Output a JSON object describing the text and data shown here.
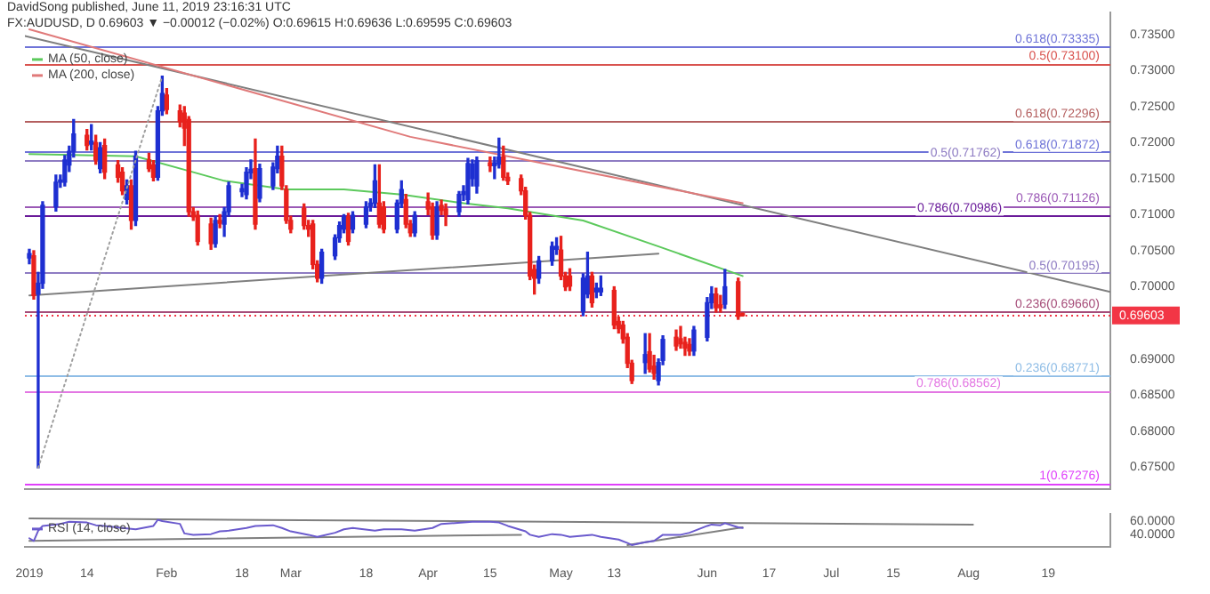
{
  "chart_data": [
    {
      "type": "candlestick",
      "annotations": [
        "DavidSong published, June 11, 2019 23:16:31 UTC",
        "FX:AUDUSD, D 0.69603 ▼ −0.00012 (−0.02%) O:0.69615 H:0.69636 L:0.69595 C:0.69603"
      ],
      "xlim": [
        "2018-12-31",
        "2019-09-02"
      ],
      "ylim": [
        0.672,
        0.738
      ],
      "yticks": [
        {
          "value": 0.675,
          "label": "0.67500"
        },
        {
          "value": 0.68,
          "label": "0.68000"
        },
        {
          "value": 0.685,
          "label": "0.68500"
        },
        {
          "value": 0.69,
          "label": "0.69000"
        },
        {
          "value": 0.7,
          "label": "0.70000"
        },
        {
          "value": 0.705,
          "label": "0.70500"
        },
        {
          "value": 0.71,
          "label": "0.71000"
        },
        {
          "value": 0.715,
          "label": "0.71500"
        },
        {
          "value": 0.72,
          "label": "0.72000"
        },
        {
          "value": 0.725,
          "label": "0.72500"
        },
        {
          "value": 0.73,
          "label": "0.73000"
        },
        {
          "value": 0.735,
          "label": "0.73500"
        }
      ],
      "tick_labels": "y",
      "legend": "top left",
      "x": [
        "2019-01-01",
        "2019-01-02",
        "2019-01-03",
        "2019-01-04",
        "2019-01-07",
        "2019-01-08",
        "2019-01-09",
        "2019-01-10",
        "2019-01-11",
        "2019-01-14",
        "2019-01-15",
        "2019-01-16",
        "2019-01-17",
        "2019-01-18",
        "2019-01-21",
        "2019-01-22",
        "2019-01-23",
        "2019-01-24",
        "2019-01-25",
        "2019-01-28",
        "2019-01-29",
        "2019-01-30",
        "2019-01-31",
        "2019-02-01",
        "2019-02-04",
        "2019-02-05",
        "2019-02-06",
        "2019-02-07",
        "2019-02-08",
        "2019-02-11",
        "2019-02-12",
        "2019-02-13",
        "2019-02-14",
        "2019-02-15",
        "2019-02-18",
        "2019-02-19",
        "2019-02-20",
        "2019-02-21",
        "2019-02-22",
        "2019-02-25",
        "2019-02-26",
        "2019-02-27",
        "2019-02-28",
        "2019-03-01",
        "2019-03-04",
        "2019-03-05",
        "2019-03-06",
        "2019-03-07",
        "2019-03-08",
        "2019-03-11",
        "2019-03-12",
        "2019-03-13",
        "2019-03-14",
        "2019-03-15",
        "2019-03-18",
        "2019-03-19",
        "2019-03-20",
        "2019-03-21",
        "2019-03-22",
        "2019-03-25",
        "2019-03-26",
        "2019-03-27",
        "2019-03-28",
        "2019-03-29",
        "2019-04-01",
        "2019-04-02",
        "2019-04-03",
        "2019-04-04",
        "2019-04-05",
        "2019-04-08",
        "2019-04-09",
        "2019-04-10",
        "2019-04-11",
        "2019-04-12",
        "2019-04-15",
        "2019-04-16",
        "2019-04-17",
        "2019-04-18",
        "2019-04-19",
        "2019-04-22",
        "2019-04-23",
        "2019-04-24",
        "2019-04-25",
        "2019-04-26",
        "2019-04-29",
        "2019-04-30",
        "2019-05-01",
        "2019-05-02",
        "2019-05-03",
        "2019-05-06",
        "2019-05-07",
        "2019-05-08",
        "2019-05-09",
        "2019-05-10",
        "2019-05-13",
        "2019-05-14",
        "2019-05-15",
        "2019-05-16",
        "2019-05-17",
        "2019-05-20",
        "2019-05-21",
        "2019-05-22",
        "2019-05-23",
        "2019-05-24",
        "2019-05-27",
        "2019-05-28",
        "2019-05-29",
        "2019-05-30",
        "2019-05-31",
        "2019-06-03",
        "2019-06-04",
        "2019-06-05",
        "2019-06-06",
        "2019-06-07",
        "2019-06-10",
        "2019-06-11"
      ],
      "ohlc": [
        [
          0.704,
          0.7052,
          0.7032,
          0.7046
        ],
        [
          0.7043,
          0.705,
          0.6983,
          0.6988
        ],
        [
          0.699,
          0.702,
          0.6749,
          0.7005
        ],
        [
          0.7005,
          0.7118,
          0.6998,
          0.7113
        ],
        [
          0.7111,
          0.7155,
          0.7105,
          0.7145
        ],
        [
          0.7145,
          0.7155,
          0.7138,
          0.7148
        ],
        [
          0.7145,
          0.7182,
          0.714,
          0.7176
        ],
        [
          0.7169,
          0.7195,
          0.716,
          0.7188
        ],
        [
          0.7188,
          0.7232,
          0.718,
          0.7212
        ],
        [
          0.721,
          0.7218,
          0.719,
          0.7196
        ],
        [
          0.7198,
          0.7225,
          0.719,
          0.7202
        ],
        [
          0.72,
          0.721,
          0.717,
          0.7176
        ],
        [
          0.7164,
          0.72,
          0.7158,
          0.7193
        ],
        [
          0.7196,
          0.7205,
          0.715,
          0.7159
        ],
        [
          0.7169,
          0.7175,
          0.7145,
          0.7152
        ],
        [
          0.7159,
          0.7165,
          0.7128,
          0.7133
        ],
        [
          0.7121,
          0.7148,
          0.7115,
          0.714
        ],
        [
          0.714,
          0.7148,
          0.708,
          0.7092
        ],
        [
          0.7092,
          0.7188,
          0.7085,
          0.7181
        ],
        [
          0.7176,
          0.7185,
          0.716,
          0.7164
        ],
        [
          0.7169,
          0.7175,
          0.7147,
          0.7152
        ],
        [
          0.7152,
          0.725,
          0.7148,
          0.7244
        ],
        [
          0.7244,
          0.7292,
          0.7238,
          0.7268
        ],
        [
          0.7266,
          0.7275,
          0.724,
          0.7246
        ],
        [
          0.7244,
          0.7252,
          0.7222,
          0.7229
        ],
        [
          0.7241,
          0.725,
          0.7196,
          0.722
        ],
        [
          0.7232,
          0.7236,
          0.7098,
          0.7104
        ],
        [
          0.7104,
          0.711,
          0.7092,
          0.7097
        ],
        [
          0.7099,
          0.7105,
          0.7058,
          0.7063
        ],
        [
          0.7087,
          0.7095,
          0.7052,
          0.706
        ],
        [
          0.706,
          0.7098,
          0.7055,
          0.7092
        ],
        [
          0.7092,
          0.71,
          0.7082,
          0.7088
        ],
        [
          0.7087,
          0.711,
          0.707,
          0.7104
        ],
        [
          0.7104,
          0.7145,
          0.7098,
          0.714
        ],
        [
          0.7132,
          0.7142,
          0.7125,
          0.7136
        ],
        [
          0.7128,
          0.7165,
          0.7122,
          0.7159
        ],
        [
          0.7158,
          0.7176,
          0.715,
          0.7163
        ],
        [
          0.7164,
          0.7205,
          0.708,
          0.7087
        ],
        [
          0.7123,
          0.717,
          0.7118,
          0.7164
        ],
        [
          0.714,
          0.7172,
          0.7135,
          0.7166
        ],
        [
          0.7164,
          0.7195,
          0.7158,
          0.7181
        ],
        [
          0.7181,
          0.7195,
          0.7135,
          0.714
        ],
        [
          0.7135,
          0.714,
          0.7088,
          0.7092
        ],
        [
          0.7092,
          0.7098,
          0.7075,
          0.708
        ],
        [
          0.7109,
          0.7115,
          0.708,
          0.7085
        ],
        [
          0.7085,
          0.7092,
          0.707,
          0.708
        ],
        [
          0.7087,
          0.7092,
          0.7025,
          0.7031
        ],
        [
          0.7031,
          0.7036,
          0.7007,
          0.7012
        ],
        [
          0.7012,
          0.7052,
          0.7005,
          0.7048
        ],
        [
          0.7043,
          0.7072,
          0.7038,
          0.7068
        ],
        [
          0.7068,
          0.709,
          0.7062,
          0.7085
        ],
        [
          0.708,
          0.71,
          0.7075,
          0.7097
        ],
        [
          0.7097,
          0.7102,
          0.7058,
          0.7063
        ],
        [
          0.708,
          0.7104,
          0.7075,
          0.7099
        ],
        [
          0.7087,
          0.7118,
          0.7082,
          0.7111
        ],
        [
          0.7112,
          0.7122,
          0.7105,
          0.7116
        ],
        [
          0.7116,
          0.7169,
          0.711,
          0.7147
        ],
        [
          0.7116,
          0.7169,
          0.7082,
          0.7087
        ],
        [
          0.7111,
          0.7118,
          0.7075,
          0.708
        ],
        [
          0.708,
          0.712,
          0.7075,
          0.7116
        ],
        [
          0.7116,
          0.7147,
          0.711,
          0.7135
        ],
        [
          0.7121,
          0.7128,
          0.7082,
          0.7087
        ],
        [
          0.7087,
          0.7092,
          0.707,
          0.7075
        ],
        [
          0.7075,
          0.7104,
          0.707,
          0.7099
        ],
        [
          0.7118,
          0.713,
          0.71,
          0.7108
        ],
        [
          0.7111,
          0.7116,
          0.7066,
          0.7072
        ],
        [
          0.7072,
          0.7118,
          0.7066,
          0.7111
        ],
        [
          0.7113,
          0.712,
          0.71,
          0.7106
        ],
        [
          0.7108,
          0.7115,
          0.7085,
          0.71
        ],
        [
          0.7104,
          0.7132,
          0.7098,
          0.7128
        ],
        [
          0.7128,
          0.714,
          0.712,
          0.7132
        ],
        [
          0.7121,
          0.7178,
          0.7115,
          0.7171
        ],
        [
          0.715,
          0.7176,
          0.714,
          0.717
        ],
        [
          0.714,
          0.718,
          0.713,
          0.7175
        ],
        [
          0.7172,
          0.718,
          0.716,
          0.7168
        ],
        [
          0.7168,
          0.718,
          0.715,
          0.7172
        ],
        [
          0.717,
          0.7206,
          0.7165,
          0.718
        ],
        [
          0.718,
          0.7195,
          0.7148,
          0.7152
        ],
        [
          0.7152,
          0.7158,
          0.7142,
          0.7147
        ],
        [
          0.715,
          0.7155,
          0.7128,
          0.7133
        ],
        [
          0.7133,
          0.7138,
          0.7094,
          0.7099
        ],
        [
          0.7099,
          0.7103,
          0.701,
          0.7015
        ],
        [
          0.7024,
          0.703,
          0.699,
          0.7012
        ],
        [
          0.7012,
          0.7042,
          0.7005,
          0.7036
        ],
        [
          0.7036,
          0.7062,
          0.703,
          0.7056
        ],
        [
          0.7052,
          0.7068,
          0.7045,
          0.7056
        ],
        [
          0.7051,
          0.707,
          0.701,
          0.7015
        ],
        [
          0.7015,
          0.702,
          0.6995,
          0.7
        ],
        [
          0.7015,
          0.7025,
          0.6995,
          0.7001
        ],
        [
          0.6966,
          0.7018,
          0.696,
          0.7012
        ],
        [
          0.699,
          0.7048,
          0.6985,
          0.7015
        ],
        [
          0.7015,
          0.702,
          0.6972,
          0.6978
        ],
        [
          0.6993,
          0.7005,
          0.6985,
          0.6998
        ],
        [
          0.6993,
          0.7015,
          0.6988,
          0.6998
        ],
        [
          0.6995,
          0.7,
          0.6942,
          0.6947
        ],
        [
          0.6952,
          0.6958,
          0.6936,
          0.6942
        ],
        [
          0.6947,
          0.6952,
          0.6922,
          0.6928
        ],
        [
          0.693,
          0.6935,
          0.6888,
          0.6894
        ],
        [
          0.6894,
          0.6898,
          0.6866,
          0.687
        ],
        [
          0.6895,
          0.6935,
          0.688,
          0.6906
        ],
        [
          0.691,
          0.6935,
          0.6882,
          0.6886
        ],
        [
          0.689,
          0.6905,
          0.6872,
          0.688
        ],
        [
          0.687,
          0.69,
          0.6864,
          0.6895
        ],
        [
          0.6898,
          0.6932,
          0.6892,
          0.6927
        ],
        [
          0.693,
          0.694,
          0.6912,
          0.6918
        ],
        [
          0.6928,
          0.6945,
          0.6915,
          0.6921
        ],
        [
          0.6923,
          0.693,
          0.6905,
          0.6915
        ],
        [
          0.692,
          0.6928,
          0.6905,
          0.6911
        ],
        [
          0.6911,
          0.6945,
          0.6905,
          0.694
        ],
        [
          0.693,
          0.6985,
          0.6925,
          0.6978
        ],
        [
          0.6978,
          0.7,
          0.697,
          0.699
        ],
        [
          0.699,
          0.6998,
          0.6965,
          0.6971
        ],
        [
          0.6975,
          0.6988,
          0.6965,
          0.6971
        ],
        [
          0.6976,
          0.7024,
          0.697,
          0.7
        ],
        [
          0.7007,
          0.7012,
          0.6955,
          0.6959
        ],
        [
          0.69615,
          0.69636,
          0.69595,
          0.69603
        ]
      ],
      "colors": [
        "#1e2fd1",
        "#e8211c",
        "#1e2fd1",
        "#1e2fd1",
        "#1e2fd1",
        "#1e2fd1",
        "#1e2fd1",
        "#1e2fd1",
        "#1e2fd1",
        "#e8211c",
        "#1e2fd1",
        "#e8211c",
        "#1e2fd1",
        "#e8211c",
        "#e8211c",
        "#e8211c",
        "#1e2fd1",
        "#e8211c",
        "#1e2fd1",
        "#e8211c",
        "#e8211c",
        "#1e2fd1",
        "#1e2fd1",
        "#e8211c",
        "#e8211c",
        "#e8211c",
        "#e8211c",
        "#e8211c",
        "#e8211c",
        "#e8211c",
        "#1e2fd1",
        "#e8211c",
        "#1e2fd1",
        "#1e2fd1",
        "#1e2fd1",
        "#1e2fd1",
        "#1e2fd1",
        "#e8211c",
        "#1e2fd1",
        "#1e2fd1",
        "#1e2fd1",
        "#e8211c",
        "#e8211c",
        "#e8211c",
        "#e8211c",
        "#e8211c",
        "#e8211c",
        "#e8211c",
        "#1e2fd1",
        "#1e2fd1",
        "#1e2fd1",
        "#1e2fd1",
        "#e8211c",
        "#1e2fd1",
        "#1e2fd1",
        "#1e2fd1",
        "#1e2fd1",
        "#e8211c",
        "#e8211c",
        "#1e2fd1",
        "#1e2fd1",
        "#e8211c",
        "#e8211c",
        "#1e2fd1",
        "#e8211c",
        "#e8211c",
        "#1e2fd1",
        "#e8211c",
        "#e8211c",
        "#1e2fd1",
        "#1e2fd1",
        "#1e2fd1",
        "#1e2fd1",
        "#1e2fd1",
        "#e8211c",
        "#1e2fd1",
        "#1e2fd1",
        "#e8211c",
        "#e8211c",
        "#e8211c",
        "#e8211c",
        "#e8211c",
        "#e8211c",
        "#1e2fd1",
        "#1e2fd1",
        "#1e2fd1",
        "#e8211c",
        "#e8211c",
        "#e8211c",
        "#1e2fd1",
        "#1e2fd1",
        "#e8211c",
        "#1e2fd1",
        "#1e2fd1",
        "#e8211c",
        "#e8211c",
        "#e8211c",
        "#e8211c",
        "#e8211c",
        "#1e2fd1",
        "#e8211c",
        "#e8211c",
        "#1e2fd1",
        "#1e2fd1",
        "#e8211c",
        "#e8211c",
        "#e8211c",
        "#e8211c",
        "#1e2fd1",
        "#1e2fd1",
        "#1e2fd1",
        "#e8211c",
        "#e8211c",
        "#1e2fd1",
        "#e8211c",
        "#e8211c"
      ],
      "series": [
        {
          "type": "line",
          "name": "MA (50, close)",
          "color": "#5cc95c",
          "x": [
            "2019-01-01",
            "2019-01-25",
            "2019-02-07",
            "2019-02-14",
            "2019-02-28",
            "2019-03-13",
            "2019-03-26",
            "2019-04-09",
            "2019-04-19",
            "2019-05-06",
            "2019-05-23",
            "2019-06-11"
          ],
          "values": [
            0.7184,
            0.7181,
            0.7159,
            0.7147,
            0.7135,
            0.7135,
            0.7128,
            0.7116,
            0.7109,
            0.7092,
            0.7056,
            0.7015
          ]
        },
        {
          "type": "line",
          "name": "MA (200, close)",
          "color": "#e07a7a",
          "x": [
            "2019-01-01",
            "2019-03-28",
            "2019-06-11"
          ],
          "values": [
            0.7357,
            0.7208,
            0.7116
          ]
        },
        {
          "type": "line",
          "color": "#7f7f7f",
          "x": [
            "2018-12-31",
            "2019-09-02"
          ],
          "values": [
            0.7348,
            0.6993
          ]
        },
        {
          "type": "line",
          "color": "#7f7f7f",
          "x": [
            "2019-01-01",
            "2019-05-23"
          ],
          "values": [
            0.6988,
            0.7046
          ]
        },
        {
          "type": "line",
          "color": "#9e9e9e",
          "line_style": "dotted",
          "x": [
            "2019-01-03",
            "2019-01-31"
          ],
          "values": [
            0.6749,
            0.7292
          ]
        }
      ],
      "ref_lines": [
        {
          "axis": "y",
          "value": 0.73335,
          "label": "0.618(0.73335)",
          "color": "#6f74d8"
        },
        {
          "axis": "y",
          "value": 0.731,
          "label": "0.5(0.73100)",
          "color": "#d9534f"
        },
        {
          "axis": "y",
          "value": 0.72296,
          "label": "0.618(0.72296)",
          "color": "#b45f5f"
        },
        {
          "axis": "y",
          "value": 0.71872,
          "label": "0.618(0.71872)",
          "color": "#6f74d8"
        },
        {
          "axis": "y",
          "value": 0.71762,
          "label": "0.5(0.71762)",
          "color": "#8e7cc3"
        },
        {
          "axis": "y",
          "value": 0.71126,
          "label": "0.786(0.71126)",
          "color": "#9b59b6"
        },
        {
          "axis": "y",
          "value": 0.70986,
          "label": "0.786(0.70986)",
          "color": "#6a1b9a"
        },
        {
          "axis": "y",
          "value": 0.70195,
          "label": "0.5(0.70195)",
          "color": "#8e7cc3"
        },
        {
          "axis": "y",
          "value": 0.6966,
          "label": "0.236(0.69660)",
          "color": "#a64d79"
        },
        {
          "axis": "y",
          "value": 0.68771,
          "label": "0.236(0.68771)",
          "color": "#8fbde6"
        },
        {
          "axis": "y",
          "value": 0.68562,
          "label": "0.786(0.68562)",
          "color": "#e377e3"
        },
        {
          "axis": "y",
          "value": 0.67276,
          "label": "1(0.67276)",
          "color": "#e040fb"
        },
        {
          "axis": "y",
          "value": 0.69603,
          "label": "0.69603",
          "color": "#f23645",
          "line_style": "dotted"
        }
      ]
    },
    {
      "type": "line",
      "xlim": [
        "2018-12-31",
        "2019-09-02"
      ],
      "ylim": [
        22,
        70
      ],
      "legend": "top left",
      "yticks": [
        {
          "value": 40,
          "label": "40.0000"
        },
        {
          "value": 60,
          "label": "60.0000"
        }
      ],
      "xticks": [
        {
          "value": "2019-01-01",
          "label": "2019"
        },
        {
          "value": "2019-01-14",
          "label": "14"
        },
        {
          "value": "2019-02-01",
          "label": "Feb"
        },
        {
          "value": "2019-02-18",
          "label": "18"
        },
        {
          "value": "2019-03-01",
          "label": "Mar"
        },
        {
          "value": "2019-03-18",
          "label": "18"
        },
        {
          "value": "2019-04-01",
          "label": "Apr"
        },
        {
          "value": "2019-04-15",
          "label": "15"
        },
        {
          "value": "2019-05-01",
          "label": "May"
        },
        {
          "value": "2019-05-13",
          "label": "13"
        },
        {
          "value": "2019-06-03",
          "label": "Jun"
        },
        {
          "value": "2019-06-17",
          "label": "17"
        },
        {
          "value": "2019-07-01",
          "label": "Jul"
        },
        {
          "value": "2019-07-15",
          "label": "15"
        },
        {
          "value": "2019-08-01",
          "label": "Aug"
        },
        {
          "value": "2019-08-19",
          "label": "19"
        }
      ],
      "series": [
        {
          "name": "RSI (14, close)",
          "color": "#6a5acd",
          "x": [
            "2019-01-01",
            "2019-01-02",
            "2019-01-03",
            "2019-01-04",
            "2019-01-08",
            "2019-01-10",
            "2019-01-14",
            "2019-01-16",
            "2019-01-18",
            "2019-01-22",
            "2019-01-25",
            "2019-01-29",
            "2019-01-30",
            "2019-01-31",
            "2019-02-04",
            "2019-02-05",
            "2019-02-07",
            "2019-02-11",
            "2019-02-13",
            "2019-02-15",
            "2019-02-19",
            "2019-02-21",
            "2019-02-25",
            "2019-02-27",
            "2019-03-01",
            "2019-03-05",
            "2019-03-07",
            "2019-03-11",
            "2019-03-13",
            "2019-03-15",
            "2019-03-20",
            "2019-03-22",
            "2019-03-26",
            "2019-03-29",
            "2019-04-02",
            "2019-04-04",
            "2019-04-09",
            "2019-04-11",
            "2019-04-15",
            "2019-04-17",
            "2019-04-19",
            "2019-04-23",
            "2019-04-24",
            "2019-04-26",
            "2019-04-29",
            "2019-05-01",
            "2019-05-03",
            "2019-05-08",
            "2019-05-10",
            "2019-05-14",
            "2019-05-16",
            "2019-05-17",
            "2019-05-20",
            "2019-05-22",
            "2019-05-24",
            "2019-05-28",
            "2019-05-30",
            "2019-06-03",
            "2019-06-04",
            "2019-06-06",
            "2019-06-07",
            "2019-06-10",
            "2019-06-11"
          ],
          "values": [
            35,
            31,
            46,
            53,
            56,
            59,
            58,
            54,
            53,
            50,
            48,
            53,
            62,
            60,
            56,
            42,
            40,
            41,
            45,
            46,
            50,
            53,
            54,
            50,
            45,
            40,
            37,
            43,
            48,
            50,
            46,
            48,
            48,
            46,
            50,
            56,
            58,
            59,
            59,
            58,
            53,
            45,
            40,
            37,
            41,
            40,
            37,
            40,
            37,
            33,
            28,
            25,
            29,
            31,
            40,
            40,
            43,
            53,
            55,
            54,
            57,
            51,
            50
          ]
        },
        {
          "color": "#7f7f7f",
          "x": [
            "2019-01-01",
            "2019-08-02"
          ],
          "values": [
            64,
            55
          ]
        },
        {
          "color": "#7f7f7f",
          "x": [
            "2019-01-01",
            "2019-04-22"
          ],
          "values": [
            31,
            40
          ]
        },
        {
          "color": "#7f7f7f",
          "x": [
            "2019-05-16",
            "2019-06-11"
          ],
          "values": [
            25,
            51
          ]
        }
      ]
    }
  ]
}
